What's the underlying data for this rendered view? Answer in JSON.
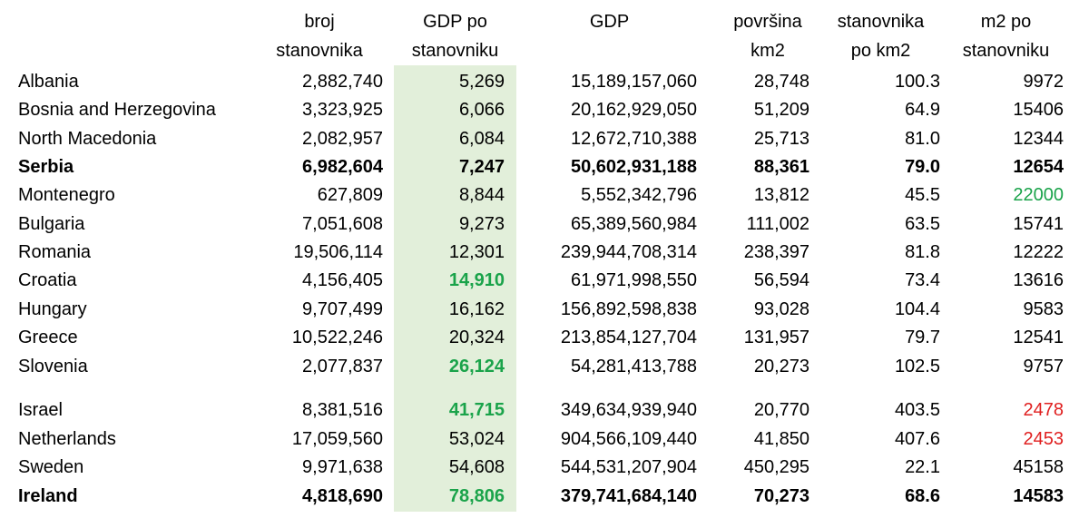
{
  "colors": {
    "highlight_fill": "#e2efda",
    "green_text": "#1aa34a",
    "red_text": "#e02020"
  },
  "headers": [
    "broj\nstanovnika",
    "GDP po\nstanovniku",
    "GDP",
    "površina\nkm2",
    "stanovnika\npo km2",
    "m2 po\nstanovniku"
  ],
  "rows": [
    {
      "name": "Albania",
      "cells": [
        "2,882,740",
        "5,269",
        "15,189,157,060",
        "28,748",
        "100.3",
        "9972"
      ],
      "bold": false,
      "gdp_pc_color": "",
      "m2_color": ""
    },
    {
      "name": "Bosnia and Herzegovina",
      "cells": [
        "3,323,925",
        "6,066",
        "20,162,929,050",
        "51,209",
        "64.9",
        "15406"
      ],
      "bold": false,
      "gdp_pc_color": "",
      "m2_color": ""
    },
    {
      "name": "North Macedonia",
      "cells": [
        "2,082,957",
        "6,084",
        "12,672,710,388",
        "25,713",
        "81.0",
        "12344"
      ],
      "bold": false,
      "gdp_pc_color": "",
      "m2_color": ""
    },
    {
      "name": "Serbia",
      "cells": [
        "6,982,604",
        "7,247",
        "50,602,931,188",
        "88,361",
        "79.0",
        "12654"
      ],
      "bold": true,
      "gdp_pc_color": "",
      "m2_color": ""
    },
    {
      "name": "Montenegro",
      "cells": [
        "627,809",
        "8,844",
        "5,552,342,796",
        "13,812",
        "45.5",
        "22000"
      ],
      "bold": false,
      "gdp_pc_color": "",
      "m2_color": "green"
    },
    {
      "name": "Bulgaria",
      "cells": [
        "7,051,608",
        "9,273",
        "65,389,560,984",
        "111,002",
        "63.5",
        "15741"
      ],
      "bold": false,
      "gdp_pc_color": "",
      "m2_color": ""
    },
    {
      "name": "Romania",
      "cells": [
        "19,506,114",
        "12,301",
        "239,944,708,314",
        "238,397",
        "81.8",
        "12222"
      ],
      "bold": false,
      "gdp_pc_color": "",
      "m2_color": ""
    },
    {
      "name": "Croatia",
      "cells": [
        "4,156,405",
        "14,910",
        "61,971,998,550",
        "56,594",
        "73.4",
        "13616"
      ],
      "bold": false,
      "gdp_pc_color": "green",
      "m2_color": ""
    },
    {
      "name": "Hungary",
      "cells": [
        "9,707,499",
        "16,162",
        "156,892,598,838",
        "93,028",
        "104.4",
        "9583"
      ],
      "bold": false,
      "gdp_pc_color": "",
      "m2_color": ""
    },
    {
      "name": "Greece",
      "cells": [
        "10,522,246",
        "20,324",
        "213,854,127,704",
        "131,957",
        "79.7",
        "12541"
      ],
      "bold": false,
      "gdp_pc_color": "",
      "m2_color": ""
    },
    {
      "name": "Slovenia",
      "cells": [
        "2,077,837",
        "26,124",
        "54,281,413,788",
        "20,273",
        "102.5",
        "9757"
      ],
      "bold": false,
      "gdp_pc_color": "green",
      "m2_color": ""
    },
    {
      "name": "Israel",
      "cells": [
        "8,381,516",
        "41,715",
        "349,634,939,940",
        "20,770",
        "403.5",
        "2478"
      ],
      "bold": false,
      "gdp_pc_color": "green",
      "m2_color": "red"
    },
    {
      "name": "Netherlands",
      "cells": [
        "17,059,560",
        "53,024",
        "904,566,109,440",
        "41,850",
        "407.6",
        "2453"
      ],
      "bold": false,
      "gdp_pc_color": "",
      "m2_color": "red"
    },
    {
      "name": "Sweden",
      "cells": [
        "9,971,638",
        "54,608",
        "544,531,207,904",
        "450,295",
        "22.1",
        "45158"
      ],
      "bold": false,
      "gdp_pc_color": "",
      "m2_color": ""
    },
    {
      "name": "Ireland",
      "cells": [
        "4,818,690",
        "78,806",
        "379,741,684,140",
        "70,273",
        "68.6",
        "14583"
      ],
      "bold": true,
      "gdp_pc_color": "green",
      "m2_color": ""
    }
  ]
}
